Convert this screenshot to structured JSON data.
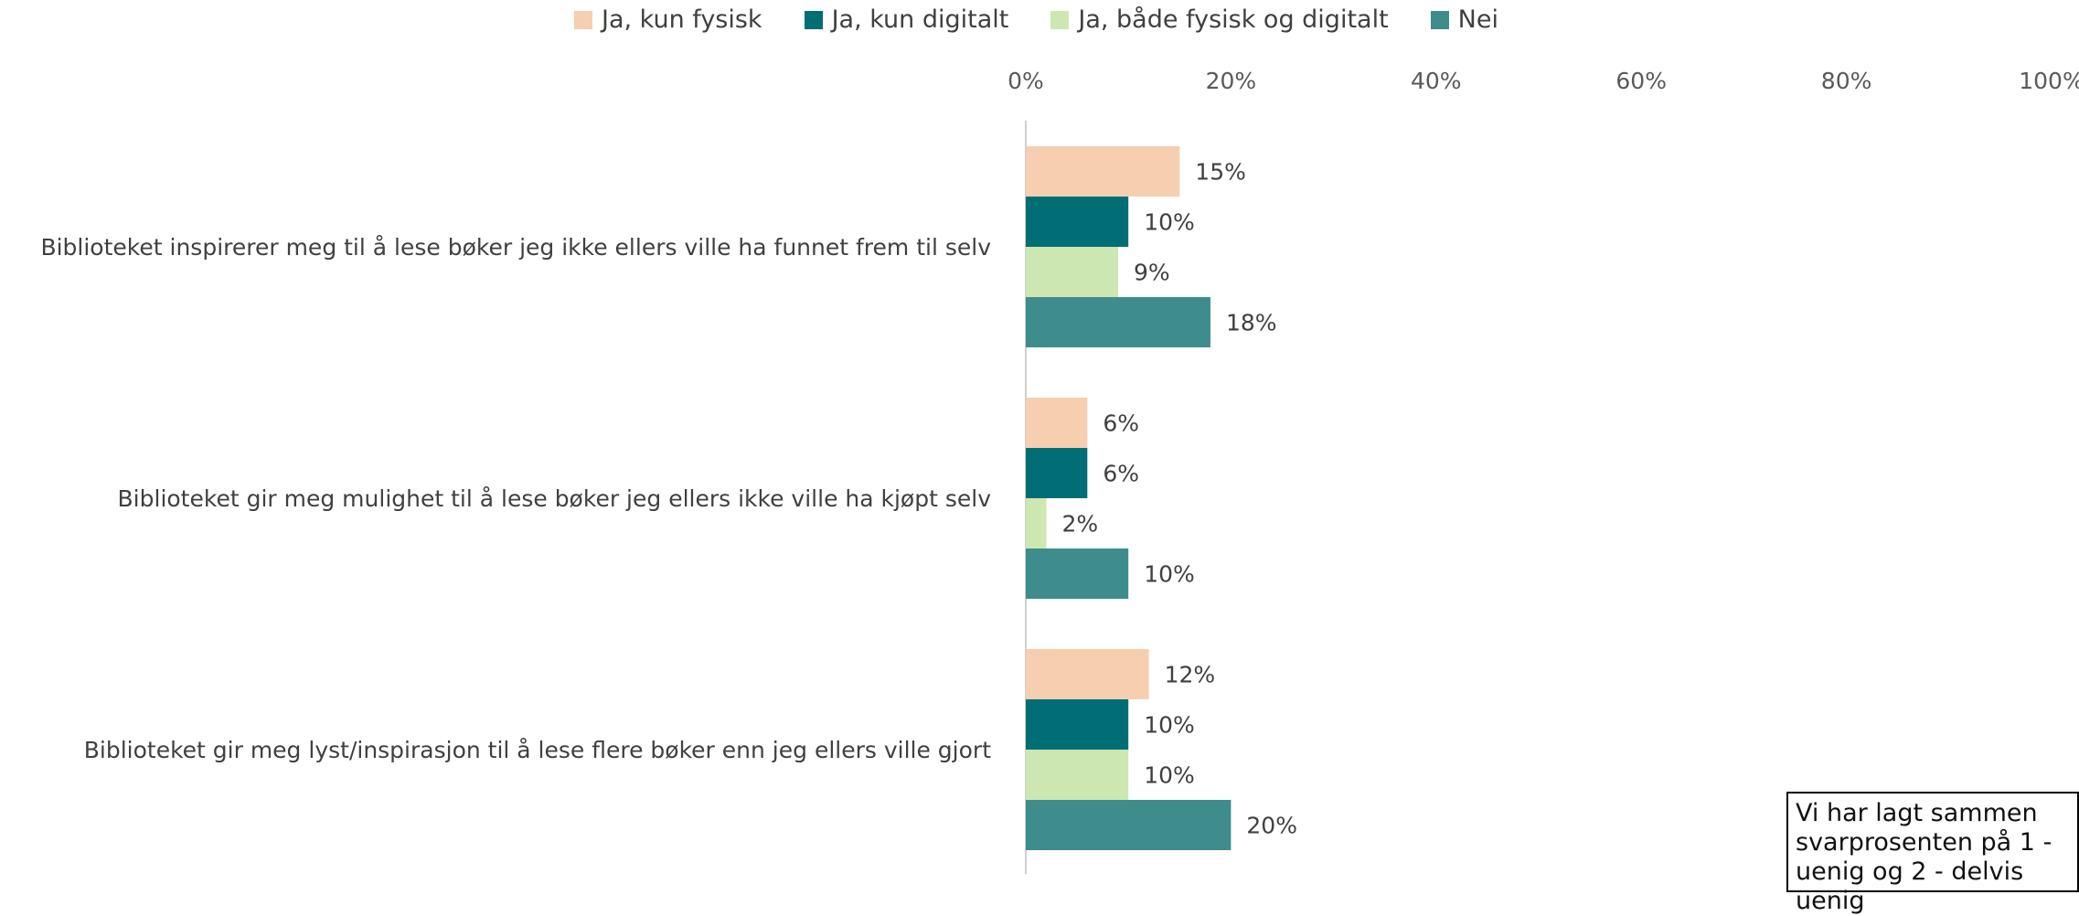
{
  "chart_data": {
    "type": "bar",
    "orientation": "horizontal",
    "categories": [
      "Biblioteket inspirerer meg til å lese bøker jeg ikke ellers ville ha funnet frem til selv",
      "Biblioteket gir meg mulighet til å lese bøker jeg ellers ikke ville ha kjøpt selv",
      "Biblioteket gir meg lyst/inspirasjon til å lese flere bøker enn jeg ellers ville gjort"
    ],
    "series": [
      {
        "name": "Ja, kun fysisk",
        "color": "#F6CEB0",
        "values": [
          15,
          6,
          12
        ]
      },
      {
        "name": "Ja, kun digitalt",
        "color": "#006E74",
        "values": [
          10,
          6,
          10
        ]
      },
      {
        "name": "Ja, både fysisk og digitalt",
        "color": "#CDE7B0",
        "values": [
          9,
          2,
          10
        ]
      },
      {
        "name": "Nei",
        "color": "#3E8C8C",
        "values": [
          18,
          10,
          20
        ]
      }
    ],
    "data_labels": [
      [
        "15%",
        "6%",
        "12%"
      ],
      [
        "10%",
        "6%",
        "10%"
      ],
      [
        "9%",
        "2%",
        "10%"
      ],
      [
        "18%",
        "10%",
        "20%"
      ]
    ],
    "xlim": [
      0,
      100
    ],
    "x_ticks": [
      "0%",
      "20%",
      "40%",
      "60%",
      "80%",
      "100%"
    ],
    "legend_position": "top",
    "grid": false
  },
  "note": {
    "text": "Vi har lagt sammen svarprosenten på 1 - uenig og 2 - delvis uenig"
  }
}
